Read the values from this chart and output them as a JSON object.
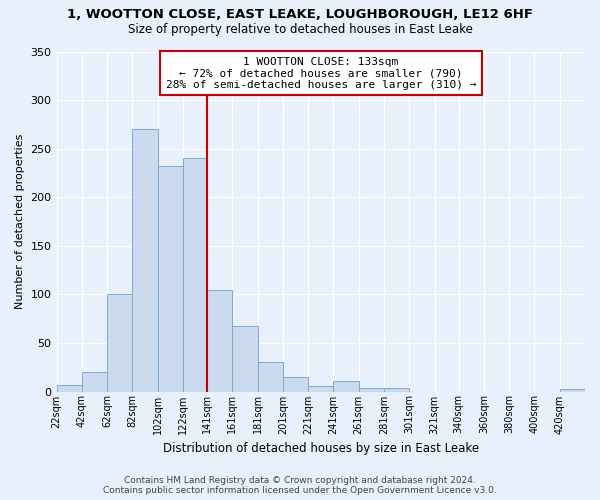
{
  "title": "1, WOOTTON CLOSE, EAST LEAKE, LOUGHBOROUGH, LE12 6HF",
  "subtitle": "Size of property relative to detached houses in East Leake",
  "xlabel": "Distribution of detached houses by size in East Leake",
  "ylabel": "Number of detached properties",
  "footer_line1": "Contains HM Land Registry data © Crown copyright and database right 2024.",
  "footer_line2": "Contains public sector information licensed under the Open Government Licence v3.0.",
  "bin_labels": [
    "22sqm",
    "42sqm",
    "62sqm",
    "82sqm",
    "102sqm",
    "122sqm",
    "141sqm",
    "161sqm",
    "181sqm",
    "201sqm",
    "221sqm",
    "241sqm",
    "261sqm",
    "281sqm",
    "301sqm",
    "321sqm",
    "340sqm",
    "360sqm",
    "380sqm",
    "400sqm",
    "420sqm"
  ],
  "bar_values": [
    7,
    20,
    100,
    270,
    232,
    240,
    105,
    67,
    30,
    15,
    6,
    11,
    4,
    4,
    0,
    0,
    0,
    0,
    0,
    0,
    3
  ],
  "bar_color": "#ccdaf0",
  "bar_edge_color": "#7baad4",
  "background_color": "#e8f0fb",
  "grid_color": "#ffffff",
  "property_label": "1 WOOTTON CLOSE: 133sqm",
  "annotation_line1": "← 72% of detached houses are smaller (790)",
  "annotation_line2": "28% of semi-detached houses are larger (310) →",
  "red_line_color": "#cc0000",
  "annotation_box_edge": "#cc0000",
  "red_line_xindex": 6,
  "ylim": [
    0,
    350
  ],
  "yticks": [
    0,
    50,
    100,
    150,
    200,
    250,
    300,
    350
  ]
}
